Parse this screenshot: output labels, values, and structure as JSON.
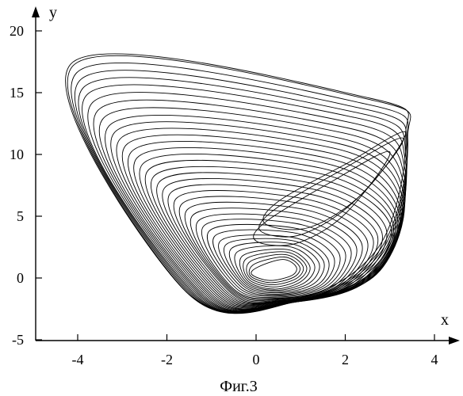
{
  "chart_data": {
    "type": "line",
    "xlabel": "x",
    "ylabel": "y",
    "xlim": [
      -5,
      4.2
    ],
    "ylim": [
      -5,
      22
    ],
    "xticks": [
      -4,
      -2,
      0,
      2,
      4
    ],
    "yticks": [
      -5,
      0,
      5,
      10,
      15,
      20
    ],
    "grid": false,
    "caption": "Фиг.3",
    "series": [
      {
        "color": "#000000",
        "approx_loops": [
          {
            "points": [
              [
                0.05,
                0.9
              ],
              [
                0.6,
                1.5
              ],
              [
                0.9,
                0.9
              ],
              [
                0.8,
                0.2
              ],
              [
                0.3,
                -0.2
              ],
              [
                -0.1,
                0.3
              ]
            ]
          },
          {
            "points": [
              [
                -0.3,
                1.8
              ],
              [
                0.7,
                2.3
              ],
              [
                1.2,
                1.0
              ],
              [
                1.0,
                -0.3
              ],
              [
                0.4,
                -0.9
              ],
              [
                -0.2,
                -0.2
              ]
            ]
          },
          {
            "points": [
              [
                -0.8,
                3.0
              ],
              [
                0.8,
                3.3
              ],
              [
                1.6,
                1.6
              ],
              [
                1.4,
                -0.5
              ],
              [
                0.5,
                -1.3
              ],
              [
                -0.3,
                -0.6
              ]
            ]
          },
          {
            "points": [
              [
                -1.3,
                4.6
              ],
              [
                0.9,
                4.8
              ],
              [
                2.1,
                2.5
              ],
              [
                1.7,
                -0.6
              ],
              [
                0.6,
                -1.6
              ],
              [
                -0.5,
                -0.9
              ]
            ]
          },
          {
            "points": [
              [
                -1.8,
                6.4
              ],
              [
                1.1,
                6.4
              ],
              [
                2.6,
                3.4
              ],
              [
                2.0,
                -0.5
              ],
              [
                0.6,
                -1.8
              ],
              [
                -0.6,
                -1.1
              ]
            ]
          },
          {
            "points": [
              [
                -2.3,
                8.2
              ],
              [
                1.3,
                8.1
              ],
              [
                3.0,
                4.4
              ],
              [
                2.3,
                -0.4
              ],
              [
                0.6,
                -1.9
              ],
              [
                -0.8,
                -1.2
              ]
            ]
          },
          {
            "points": [
              [
                -2.8,
                10.2
              ],
              [
                1.6,
                9.7
              ],
              [
                3.2,
                5.4
              ],
              [
                2.5,
                -0.2
              ],
              [
                0.7,
                -2.0
              ],
              [
                -1.0,
                -1.3
              ]
            ]
          },
          {
            "points": [
              [
                -3.3,
                12.3
              ],
              [
                1.9,
                11.3
              ],
              [
                3.3,
                7.0
              ],
              [
                2.7,
                0.3
              ],
              [
                0.7,
                -2.0
              ],
              [
                -1.2,
                -1.3
              ]
            ]
          },
          {
            "points": [
              [
                -3.8,
                14.8
              ],
              [
                2.2,
                13.0
              ],
              [
                3.35,
                9.4
              ],
              [
                2.8,
                1.2
              ],
              [
                0.8,
                -2.0
              ],
              [
                -1.4,
                -1.2
              ]
            ]
          },
          {
            "points": [
              [
                -4.1,
                17.2
              ],
              [
                2.6,
                14.4
              ],
              [
                3.4,
                11.3
              ],
              [
                2.8,
                2.4
              ],
              [
                0.9,
                -1.9
              ],
              [
                -1.6,
                -1.0
              ]
            ]
          }
        ],
        "lobe_loops": [
          {
            "points": [
              [
                0.4,
                5.5
              ],
              [
                1.8,
                8.5
              ],
              [
                3.3,
                11.3
              ],
              [
                2.2,
                6.2
              ],
              [
                1.0,
                3.5
              ],
              [
                0.1,
                3.8
              ]
            ]
          },
          {
            "points": [
              [
                0.2,
                4.5
              ],
              [
                1.6,
                7.6
              ],
              [
                3.0,
                10.2
              ],
              [
                2.0,
                5.2
              ],
              [
                0.9,
                2.8
              ],
              [
                0.0,
                3.0
              ]
            ]
          },
          {
            "points": [
              [
                0.5,
                6.2
              ],
              [
                2.0,
                9.2
              ],
              [
                3.35,
                11.8
              ],
              [
                2.4,
                6.9
              ],
              [
                1.2,
                4.1
              ],
              [
                0.2,
                4.4
              ]
            ]
          }
        ]
      }
    ]
  }
}
